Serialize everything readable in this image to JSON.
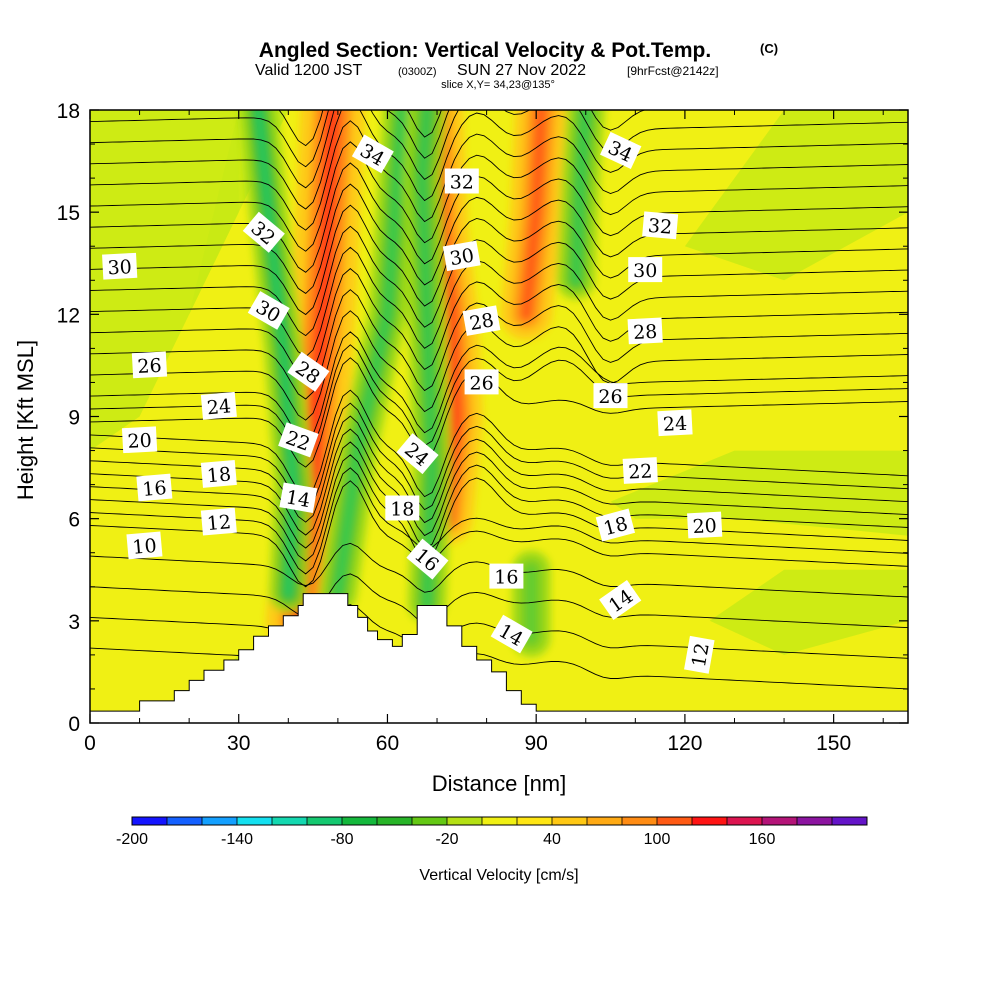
{
  "chart_data": {
    "type": "heatmap",
    "title": "Angled Section: Vertical Velocity & Pot.Temp.",
    "title_mark": "(C)",
    "subtitle": {
      "prefix": "Valid 1200 JST",
      "utc": "(0300Z)",
      "date": "SUN 27 Nov 2022",
      "forecast": "[9hrFcst@2142z]"
    },
    "slice_label": "slice X,Y= 34,23@135°",
    "xlabel": "Distance [nm]",
    "ylabel": "Height [Kft MSL]",
    "xlim": [
      0,
      165
    ],
    "ylim": [
      0,
      18
    ],
    "x_ticks": [
      "0",
      "30",
      "60",
      "90",
      "120",
      "150"
    ],
    "y_ticks": [
      "0",
      "3",
      "6",
      "9",
      "12",
      "15",
      "18"
    ],
    "colorbar": {
      "label": "Vertical Velocity [cm/s]",
      "tick_labels": [
        "-200",
        "-140",
        "-80",
        "-20",
        "40",
        "100",
        "160"
      ],
      "colors": [
        "#1414ff",
        "#1460ff",
        "#14a0ff",
        "#14e0f0",
        "#14d8b0",
        "#14c870",
        "#14b83c",
        "#28b428",
        "#64c814",
        "#b4e014",
        "#f0f014",
        "#ffe614",
        "#ffc814",
        "#ffaa14",
        "#ff8c14",
        "#ff5a14",
        "#ff1414",
        "#dc1450",
        "#b41478",
        "#8c14a0",
        "#6414c8"
      ]
    },
    "terrain_kft": [
      [
        0,
        0.35
      ],
      [
        10,
        0.35
      ],
      [
        10,
        0.65
      ],
      [
        17,
        0.65
      ],
      [
        17,
        0.95
      ],
      [
        20,
        0.95
      ],
      [
        20,
        1.25
      ],
      [
        23,
        1.25
      ],
      [
        23,
        1.55
      ],
      [
        27,
        1.55
      ],
      [
        27,
        1.85
      ],
      [
        30,
        1.85
      ],
      [
        30,
        2.15
      ],
      [
        33,
        2.15
      ],
      [
        33,
        2.55
      ],
      [
        36,
        2.55
      ],
      [
        36,
        2.85
      ],
      [
        39,
        2.85
      ],
      [
        39,
        3.15
      ],
      [
        42,
        3.15
      ],
      [
        42,
        3.45
      ],
      [
        43,
        3.45
      ],
      [
        43,
        3.8
      ],
      [
        52,
        3.8
      ],
      [
        52,
        3.45
      ],
      [
        54,
        3.45
      ],
      [
        54,
        3.1
      ],
      [
        56,
        3.1
      ],
      [
        56,
        2.7
      ],
      [
        58,
        2.7
      ],
      [
        58,
        2.45
      ],
      [
        61,
        2.45
      ],
      [
        61,
        2.25
      ],
      [
        63,
        2.25
      ],
      [
        63,
        2.6
      ],
      [
        66,
        2.6
      ],
      [
        66,
        3.45
      ],
      [
        72,
        3.45
      ],
      [
        72,
        2.85
      ],
      [
        75,
        2.85
      ],
      [
        75,
        2.25
      ],
      [
        78,
        2.25
      ],
      [
        78,
        1.85
      ],
      [
        81,
        1.85
      ],
      [
        81,
        1.5
      ],
      [
        84,
        1.5
      ],
      [
        84,
        0.95
      ],
      [
        87,
        0.95
      ],
      [
        87,
        0.55
      ],
      [
        90,
        0.55
      ],
      [
        90,
        0.35
      ],
      [
        165,
        0.35
      ]
    ],
    "velocity_features": [
      {
        "sign": "up",
        "peak": 100,
        "path": [
          [
            42,
            3.0
          ],
          [
            45,
            7.5
          ],
          [
            47,
            12.0
          ],
          [
            49,
            18.0
          ]
        ],
        "width_nm": 5
      },
      {
        "sign": "down",
        "peak": -80,
        "path": [
          [
            40,
            3.8
          ],
          [
            41,
            7.0
          ],
          [
            39,
            11.0
          ],
          [
            36,
            15.0
          ],
          [
            34,
            18.0
          ]
        ],
        "width_nm": 3
      },
      {
        "sign": "down",
        "peak": -60,
        "path": [
          [
            50,
            3.8
          ],
          [
            54,
            8.0
          ],
          [
            60,
            12.0
          ],
          [
            63,
            18.0
          ]
        ],
        "width_nm": 3
      },
      {
        "sign": "up",
        "peak": 80,
        "path": [
          [
            72,
            6.0
          ],
          [
            74,
            9.0
          ],
          [
            73,
            12.0
          ],
          [
            71,
            14.5
          ],
          [
            70,
            18.0
          ]
        ],
        "width_nm": 4
      },
      {
        "sign": "down",
        "peak": -60,
        "path": [
          [
            68,
            3.5
          ],
          [
            69,
            7.5
          ],
          [
            68,
            12.0
          ],
          [
            67,
            16.0
          ],
          [
            68,
            18.0
          ]
        ],
        "width_nm": 3
      },
      {
        "sign": "up",
        "peak": 70,
        "path": [
          [
            88,
            12.0
          ],
          [
            90,
            15.0
          ],
          [
            91,
            18.0
          ]
        ],
        "width_nm": 4
      },
      {
        "sign": "down",
        "peak": -60,
        "path": [
          [
            98,
            13.0
          ],
          [
            99,
            16.0
          ],
          [
            100,
            18.0
          ]
        ],
        "width_nm": 3
      },
      {
        "sign": "down",
        "peak": -30,
        "path": [
          [
            89,
            2.5
          ],
          [
            89,
            4.5
          ]
        ],
        "width_nm": 3
      }
    ],
    "potential_temperature": {
      "levels_C": [
        10,
        12,
        14,
        16,
        18,
        20,
        22,
        24,
        26,
        28,
        30,
        32,
        34
      ],
      "contour_labels": [
        {
          "text": "10",
          "x": 11,
          "y": 5.2,
          "angle": -5
        },
        {
          "text": "12",
          "x": 26,
          "y": 5.9,
          "angle": -5
        },
        {
          "text": "16",
          "x": 13,
          "y": 6.9,
          "angle": -5
        },
        {
          "text": "18",
          "x": 26,
          "y": 7.3,
          "angle": -5
        },
        {
          "text": "14",
          "x": 42,
          "y": 6.6,
          "angle": 10
        },
        {
          "text": "20",
          "x": 10,
          "y": 8.3,
          "angle": -3
        },
        {
          "text": "22",
          "x": 42,
          "y": 8.3,
          "angle": 20
        },
        {
          "text": "24",
          "x": 26,
          "y": 9.3,
          "angle": -5
        },
        {
          "text": "26",
          "x": 12,
          "y": 10.5,
          "angle": -3
        },
        {
          "text": "28",
          "x": 44,
          "y": 10.3,
          "angle": 35
        },
        {
          "text": "30",
          "x": 6,
          "y": 13.4,
          "angle": -3
        },
        {
          "text": "30",
          "x": 36,
          "y": 12.1,
          "angle": 30
        },
        {
          "text": "32",
          "x": 35,
          "y": 14.4,
          "angle": 40
        },
        {
          "text": "34",
          "x": 57,
          "y": 16.7,
          "angle": 30
        },
        {
          "text": "18",
          "x": 63,
          "y": 6.3,
          "angle": 0
        },
        {
          "text": "24",
          "x": 66,
          "y": 7.9,
          "angle": 40
        },
        {
          "text": "16",
          "x": 68,
          "y": 4.8,
          "angle": 40
        },
        {
          "text": "16",
          "x": 84,
          "y": 4.3,
          "angle": 0
        },
        {
          "text": "14",
          "x": 85,
          "y": 2.6,
          "angle": 30
        },
        {
          "text": "26",
          "x": 79,
          "y": 10.0,
          "angle": 0
        },
        {
          "text": "28",
          "x": 79,
          "y": 11.8,
          "angle": -10
        },
        {
          "text": "30",
          "x": 75,
          "y": 13.7,
          "angle": -10
        },
        {
          "text": "32",
          "x": 75,
          "y": 15.9,
          "angle": 0
        },
        {
          "text": "26",
          "x": 105,
          "y": 9.6,
          "angle": 0
        },
        {
          "text": "28",
          "x": 112,
          "y": 11.5,
          "angle": -3
        },
        {
          "text": "30",
          "x": 112,
          "y": 13.3,
          "angle": 0
        },
        {
          "text": "32",
          "x": 115,
          "y": 14.6,
          "angle": 5
        },
        {
          "text": "34",
          "x": 107,
          "y": 16.8,
          "angle": 25
        },
        {
          "text": "24",
          "x": 118,
          "y": 8.8,
          "angle": -3
        },
        {
          "text": "22",
          "x": 111,
          "y": 7.4,
          "angle": -3
        },
        {
          "text": "18",
          "x": 106,
          "y": 5.8,
          "angle": -15
        },
        {
          "text": "20",
          "x": 124,
          "y": 5.8,
          "angle": -3
        },
        {
          "text": "14",
          "x": 107,
          "y": 3.6,
          "angle": -35
        },
        {
          "text": "12",
          "x": 123,
          "y": 2.0,
          "angle": -80
        }
      ]
    }
  }
}
